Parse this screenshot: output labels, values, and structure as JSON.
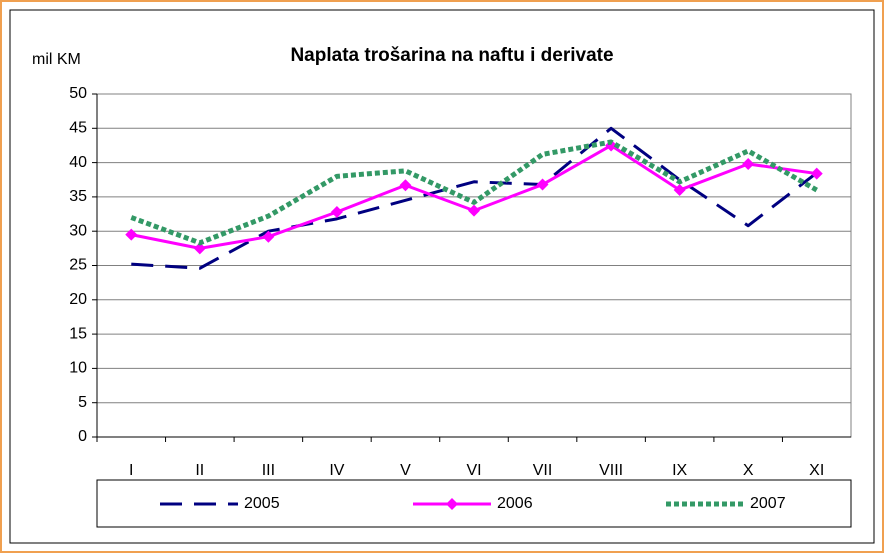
{
  "chart_data": {
    "type": "line",
    "title": "Naplata trošarina na naftu i derivate",
    "y_label": "mil KM",
    "categories": [
      "I",
      "II",
      "III",
      "IV",
      "V",
      "VI",
      "VII",
      "VIII",
      "IX",
      "X",
      "XI"
    ],
    "series": [
      {
        "name": "2005",
        "color": "#000080",
        "values": [
          25.2,
          24.6,
          30,
          31.8,
          34.5,
          37.2,
          36.8,
          45,
          37.5,
          30.8,
          38.5
        ]
      },
      {
        "name": "2006",
        "color": "#ff00ff",
        "values": [
          29.5,
          27.5,
          29.2,
          32.8,
          36.7,
          33,
          36.8,
          42.5,
          36,
          39.8,
          38.4
        ]
      },
      {
        "name": "2007",
        "color": "#339966",
        "values": [
          32,
          28.3,
          32.2,
          38,
          38.8,
          34.2,
          41.2,
          43,
          37.2,
          41.7,
          36
        ]
      }
    ],
    "ylim": [
      0,
      50
    ],
    "yticks": [
      0,
      5,
      10,
      15,
      20,
      25,
      30,
      35,
      40,
      45,
      50
    ],
    "grid": true,
    "legend": "bottom"
  }
}
